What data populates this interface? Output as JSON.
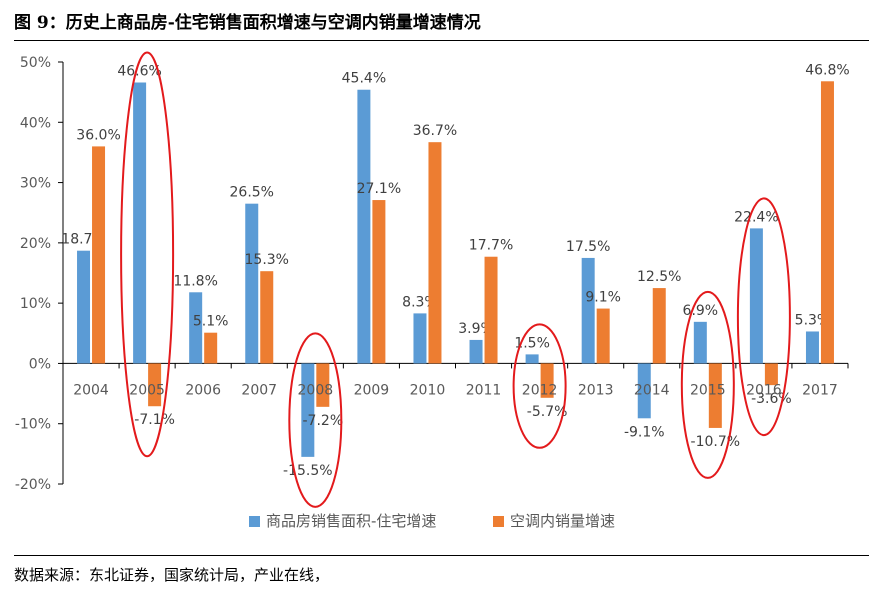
{
  "figure": {
    "title": "图 9：历史上商品房-住宅销售面积增速与空调内销量增速情况",
    "source": "数据来源：东北证券，国家统计局，产业在线，"
  },
  "chart_data": {
    "type": "bar",
    "categories": [
      "2004",
      "2005",
      "2006",
      "2007",
      "2008",
      "2009",
      "2010",
      "2011",
      "2012",
      "2013",
      "2014",
      "2015",
      "2016",
      "2017"
    ],
    "series": [
      {
        "name": "商品房销售面积-住宅增速",
        "color": "#5B9BD5",
        "values": [
          18.7,
          46.6,
          11.8,
          26.5,
          -15.5,
          45.4,
          8.3,
          3.9,
          1.5,
          17.5,
          -9.1,
          6.9,
          22.4,
          5.3
        ],
        "labels": [
          "18.7%",
          "46.6%",
          "11.8%",
          "26.5%",
          "-15.5%",
          "45.4%",
          "8.3%",
          "3.9%",
          "1.5%",
          "17.5%",
          "-9.1%",
          "6.9%",
          "22.4%",
          "5.3%"
        ]
      },
      {
        "name": "空调内销量增速",
        "color": "#ED7D31",
        "values": [
          36.0,
          -7.1,
          5.1,
          15.3,
          -7.2,
          27.1,
          36.7,
          17.7,
          -5.7,
          9.1,
          12.5,
          -10.7,
          -3.6,
          46.8
        ],
        "labels": [
          "36.0%",
          "-7.1%",
          "5.1%",
          "15.3%",
          "-7.2%",
          "27.1%",
          "36.7%",
          "17.7%",
          "-5.7%",
          "9.1%",
          "12.5%",
          "-10.7%",
          "-3.6%",
          "46.8%"
        ]
      }
    ],
    "y_ticks": [
      50,
      40,
      30,
      20,
      10,
      0,
      -10,
      -20
    ],
    "y_tick_labels": [
      "50%",
      "40%",
      "30%",
      "20%",
      "10%",
      "0%",
      "-10%",
      "-20%"
    ],
    "ylim": [
      -20,
      50
    ],
    "grid": false,
    "legend_position": "bottom",
    "highlighted_categories": [
      "2005",
      "2008",
      "2012",
      "2015",
      "2016"
    ],
    "highlight_color": "#E31A1C"
  }
}
